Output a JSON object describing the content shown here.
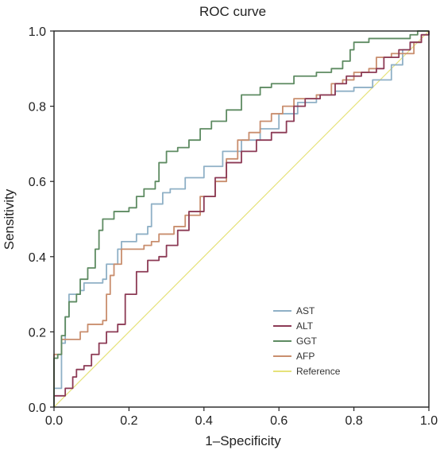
{
  "chart_data": {
    "type": "line",
    "title": "ROC curve",
    "xlabel": "1–Specificity",
    "ylabel": "Sensitivity",
    "xlim": [
      0,
      1
    ],
    "ylim": [
      0,
      1
    ],
    "xticks": [
      "0.0",
      "0.2",
      "0.4",
      "0.6",
      "0.8",
      "1.0"
    ],
    "yticks": [
      "0.0",
      "0.2",
      "0.4",
      "0.6",
      "0.8",
      "1.0"
    ],
    "grid": false,
    "legend_position": "bottom-right",
    "series": [
      {
        "name": "AST",
        "color": "#8fb0c6",
        "points": [
          [
            0,
            0
          ],
          [
            0,
            0.05
          ],
          [
            0.02,
            0.06
          ],
          [
            0.02,
            0.17
          ],
          [
            0.03,
            0.24
          ],
          [
            0.04,
            0.25
          ],
          [
            0.04,
            0.3
          ],
          [
            0.07,
            0.31
          ],
          [
            0.08,
            0.33
          ],
          [
            0.13,
            0.34
          ],
          [
            0.14,
            0.38
          ],
          [
            0.17,
            0.42
          ],
          [
            0.18,
            0.44
          ],
          [
            0.22,
            0.46
          ],
          [
            0.25,
            0.48
          ],
          [
            0.26,
            0.54
          ],
          [
            0.29,
            0.57
          ],
          [
            0.31,
            0.58
          ],
          [
            0.35,
            0.61
          ],
          [
            0.4,
            0.64
          ],
          [
            0.45,
            0.68
          ],
          [
            0.5,
            0.71
          ],
          [
            0.55,
            0.74
          ],
          [
            0.6,
            0.78
          ],
          [
            0.65,
            0.81
          ],
          [
            0.7,
            0.83
          ],
          [
            0.75,
            0.84
          ],
          [
            0.8,
            0.85
          ],
          [
            0.85,
            0.87
          ],
          [
            0.9,
            0.91
          ],
          [
            0.93,
            0.95
          ],
          [
            0.95,
            0.97
          ],
          [
            0.98,
            0.99
          ],
          [
            1,
            1
          ]
        ]
      },
      {
        "name": "ALT",
        "color": "#8c3a55",
        "points": [
          [
            0,
            0
          ],
          [
            0,
            0.03
          ],
          [
            0.03,
            0.05
          ],
          [
            0.05,
            0.08
          ],
          [
            0.06,
            0.1
          ],
          [
            0.08,
            0.11
          ],
          [
            0.1,
            0.14
          ],
          [
            0.12,
            0.17
          ],
          [
            0.14,
            0.2
          ],
          [
            0.17,
            0.22
          ],
          [
            0.19,
            0.3
          ],
          [
            0.22,
            0.36
          ],
          [
            0.25,
            0.39
          ],
          [
            0.28,
            0.4
          ],
          [
            0.3,
            0.43
          ],
          [
            0.33,
            0.47
          ],
          [
            0.36,
            0.52
          ],
          [
            0.4,
            0.56
          ],
          [
            0.43,
            0.61
          ],
          [
            0.46,
            0.65
          ],
          [
            0.5,
            0.68
          ],
          [
            0.54,
            0.71
          ],
          [
            0.58,
            0.73
          ],
          [
            0.62,
            0.76
          ],
          [
            0.64,
            0.8
          ],
          [
            0.67,
            0.82
          ],
          [
            0.71,
            0.83
          ],
          [
            0.75,
            0.86
          ],
          [
            0.78,
            0.88
          ],
          [
            0.82,
            0.89
          ],
          [
            0.86,
            0.9
          ],
          [
            0.88,
            0.93
          ],
          [
            0.92,
            0.95
          ],
          [
            0.95,
            0.97
          ],
          [
            0.98,
            0.99
          ],
          [
            1,
            1
          ]
        ]
      },
      {
        "name": "GGT",
        "color": "#5e8b62",
        "points": [
          [
            0,
            0
          ],
          [
            0,
            0.13
          ],
          [
            0.01,
            0.14
          ],
          [
            0.02,
            0.19
          ],
          [
            0.03,
            0.24
          ],
          [
            0.04,
            0.28
          ],
          [
            0.06,
            0.3
          ],
          [
            0.07,
            0.34
          ],
          [
            0.09,
            0.37
          ],
          [
            0.11,
            0.42
          ],
          [
            0.12,
            0.47
          ],
          [
            0.13,
            0.5
          ],
          [
            0.16,
            0.52
          ],
          [
            0.2,
            0.53
          ],
          [
            0.22,
            0.56
          ],
          [
            0.24,
            0.58
          ],
          [
            0.27,
            0.6
          ],
          [
            0.28,
            0.65
          ],
          [
            0.3,
            0.68
          ],
          [
            0.33,
            0.69
          ],
          [
            0.36,
            0.71
          ],
          [
            0.39,
            0.74
          ],
          [
            0.42,
            0.76
          ],
          [
            0.46,
            0.79
          ],
          [
            0.5,
            0.83
          ],
          [
            0.55,
            0.85
          ],
          [
            0.58,
            0.86
          ],
          [
            0.64,
            0.88
          ],
          [
            0.7,
            0.89
          ],
          [
            0.74,
            0.9
          ],
          [
            0.77,
            0.92
          ],
          [
            0.79,
            0.95
          ],
          [
            0.8,
            0.97
          ],
          [
            0.84,
            0.98
          ],
          [
            0.95,
            0.99
          ],
          [
            0.97,
            1.0
          ],
          [
            1,
            1
          ]
        ]
      },
      {
        "name": "AFP",
        "color": "#c98e6e",
        "points": [
          [
            0,
            0
          ],
          [
            0,
            0.14
          ],
          [
            0.02,
            0.18
          ],
          [
            0.06,
            0.18
          ],
          [
            0.07,
            0.2
          ],
          [
            0.09,
            0.22
          ],
          [
            0.13,
            0.23
          ],
          [
            0.14,
            0.3
          ],
          [
            0.15,
            0.35
          ],
          [
            0.16,
            0.38
          ],
          [
            0.18,
            0.42
          ],
          [
            0.24,
            0.43
          ],
          [
            0.26,
            0.44
          ],
          [
            0.28,
            0.46
          ],
          [
            0.32,
            0.48
          ],
          [
            0.35,
            0.51
          ],
          [
            0.39,
            0.56
          ],
          [
            0.43,
            0.6
          ],
          [
            0.46,
            0.66
          ],
          [
            0.49,
            0.71
          ],
          [
            0.52,
            0.73
          ],
          [
            0.55,
            0.76
          ],
          [
            0.58,
            0.78
          ],
          [
            0.61,
            0.8
          ],
          [
            0.64,
            0.82
          ],
          [
            0.7,
            0.83
          ],
          [
            0.74,
            0.86
          ],
          [
            0.77,
            0.87
          ],
          [
            0.8,
            0.89
          ],
          [
            0.84,
            0.9
          ],
          [
            0.86,
            0.93
          ],
          [
            0.9,
            0.94
          ],
          [
            0.94,
            0.94
          ],
          [
            0.96,
            0.97
          ],
          [
            0.98,
            0.99
          ],
          [
            1,
            1
          ]
        ]
      },
      {
        "name": "Reference",
        "color": "#e6e27a",
        "points": [
          [
            0,
            0
          ],
          [
            1,
            1
          ]
        ]
      }
    ]
  }
}
